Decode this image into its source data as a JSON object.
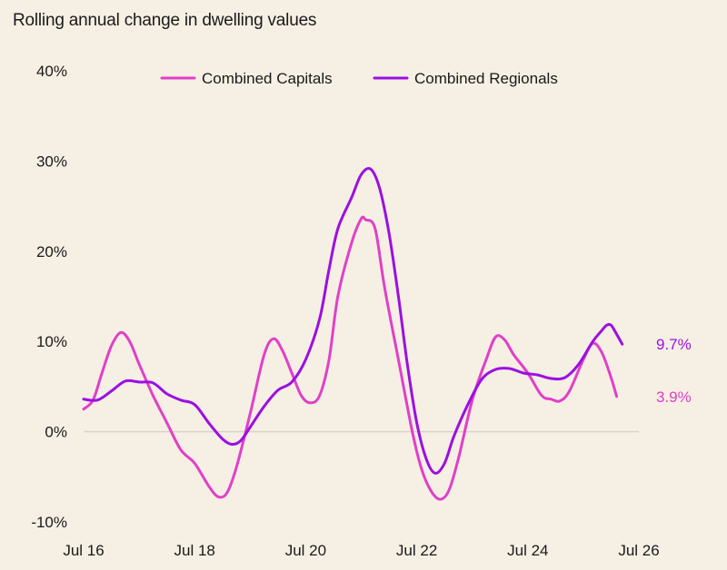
{
  "chart_data": {
    "type": "line",
    "title": "Rolling annual change in dwelling values",
    "xlabel": "",
    "ylabel": "",
    "ylim": [
      -10,
      40
    ],
    "y_ticks": [
      "-10%",
      "0%",
      "10%",
      "20%",
      "30%",
      "40%"
    ],
    "y_tick_values": [
      -10,
      0,
      10,
      20,
      30,
      40
    ],
    "x_ticks": [
      "Jul 16",
      "Jul 18",
      "Jul 20",
      "Jul 22",
      "Jul 24",
      "Jul 26"
    ],
    "x_tick_values": [
      2016.5,
      2018.5,
      2020.5,
      2022.5,
      2024.5,
      2026.5
    ],
    "xlim": [
      2016.5,
      2026.5
    ],
    "grid": false,
    "zero_line": true,
    "legend_position": "top",
    "series": [
      {
        "name": "Combined Capitals",
        "color": "#e040c8",
        "end_label": "3.9%",
        "points": [
          [
            2016.5,
            2.5
          ],
          [
            2016.67,
            3.5
          ],
          [
            2016.83,
            6.5
          ],
          [
            2017.0,
            9.5
          ],
          [
            2017.17,
            11.0
          ],
          [
            2017.33,
            10.0
          ],
          [
            2017.5,
            7.5
          ],
          [
            2017.75,
            4.0
          ],
          [
            2018.0,
            1.0
          ],
          [
            2018.25,
            -2.0
          ],
          [
            2018.5,
            -3.5
          ],
          [
            2018.75,
            -6.0
          ],
          [
            2018.92,
            -7.2
          ],
          [
            2019.08,
            -6.8
          ],
          [
            2019.25,
            -4.0
          ],
          [
            2019.5,
            2.0
          ],
          [
            2019.75,
            8.5
          ],
          [
            2019.92,
            10.3
          ],
          [
            2020.08,
            9.0
          ],
          [
            2020.25,
            6.5
          ],
          [
            2020.42,
            4.0
          ],
          [
            2020.58,
            3.2
          ],
          [
            2020.75,
            4.0
          ],
          [
            2020.92,
            8.0
          ],
          [
            2021.08,
            15.0
          ],
          [
            2021.33,
            21.0
          ],
          [
            2021.5,
            23.6
          ],
          [
            2021.58,
            23.5
          ],
          [
            2021.75,
            22.5
          ],
          [
            2021.92,
            16.0
          ],
          [
            2022.17,
            8.0
          ],
          [
            2022.42,
            0.0
          ],
          [
            2022.58,
            -4.0
          ],
          [
            2022.75,
            -6.5
          ],
          [
            2022.92,
            -7.5
          ],
          [
            2023.08,
            -6.5
          ],
          [
            2023.25,
            -3.0
          ],
          [
            2023.5,
            3.5
          ],
          [
            2023.75,
            8.0
          ],
          [
            2023.92,
            10.5
          ],
          [
            2024.08,
            10.2
          ],
          [
            2024.25,
            8.5
          ],
          [
            2024.5,
            6.5
          ],
          [
            2024.75,
            4.0
          ],
          [
            2024.92,
            3.6
          ],
          [
            2025.08,
            3.4
          ],
          [
            2025.25,
            4.5
          ],
          [
            2025.5,
            8.0
          ],
          [
            2025.67,
            9.8
          ],
          [
            2025.83,
            8.8
          ],
          [
            2026.0,
            6.0
          ],
          [
            2026.1,
            3.9
          ]
        ]
      },
      {
        "name": "Combined Regionals",
        "color": "#9b10e0",
        "end_label": "9.7%",
        "points": [
          [
            2016.5,
            3.6
          ],
          [
            2016.75,
            3.5
          ],
          [
            2017.0,
            4.5
          ],
          [
            2017.25,
            5.6
          ],
          [
            2017.5,
            5.5
          ],
          [
            2017.75,
            5.4
          ],
          [
            2018.0,
            4.2
          ],
          [
            2018.25,
            3.5
          ],
          [
            2018.5,
            3.0
          ],
          [
            2018.75,
            1.0
          ],
          [
            2019.0,
            -0.8
          ],
          [
            2019.17,
            -1.4
          ],
          [
            2019.33,
            -1.0
          ],
          [
            2019.5,
            0.5
          ],
          [
            2019.75,
            2.8
          ],
          [
            2020.0,
            4.6
          ],
          [
            2020.25,
            5.5
          ],
          [
            2020.5,
            8.0
          ],
          [
            2020.75,
            12.5
          ],
          [
            2020.92,
            18.0
          ],
          [
            2021.08,
            22.5
          ],
          [
            2021.33,
            26.0
          ],
          [
            2021.5,
            28.5
          ],
          [
            2021.67,
            29.1
          ],
          [
            2021.83,
            27.0
          ],
          [
            2022.0,
            22.0
          ],
          [
            2022.17,
            15.0
          ],
          [
            2022.33,
            7.5
          ],
          [
            2022.5,
            1.0
          ],
          [
            2022.67,
            -3.0
          ],
          [
            2022.83,
            -4.6
          ],
          [
            2023.0,
            -3.5
          ],
          [
            2023.17,
            -0.5
          ],
          [
            2023.42,
            3.0
          ],
          [
            2023.67,
            5.8
          ],
          [
            2023.92,
            6.9
          ],
          [
            2024.17,
            7.0
          ],
          [
            2024.42,
            6.5
          ],
          [
            2024.67,
            6.3
          ],
          [
            2024.92,
            5.9
          ],
          [
            2025.17,
            6.0
          ],
          [
            2025.42,
            7.5
          ],
          [
            2025.67,
            10.0
          ],
          [
            2025.83,
            11.2
          ],
          [
            2025.92,
            11.8
          ],
          [
            2026.0,
            11.8
          ],
          [
            2026.1,
            10.8
          ],
          [
            2026.2,
            9.7
          ]
        ]
      }
    ]
  }
}
